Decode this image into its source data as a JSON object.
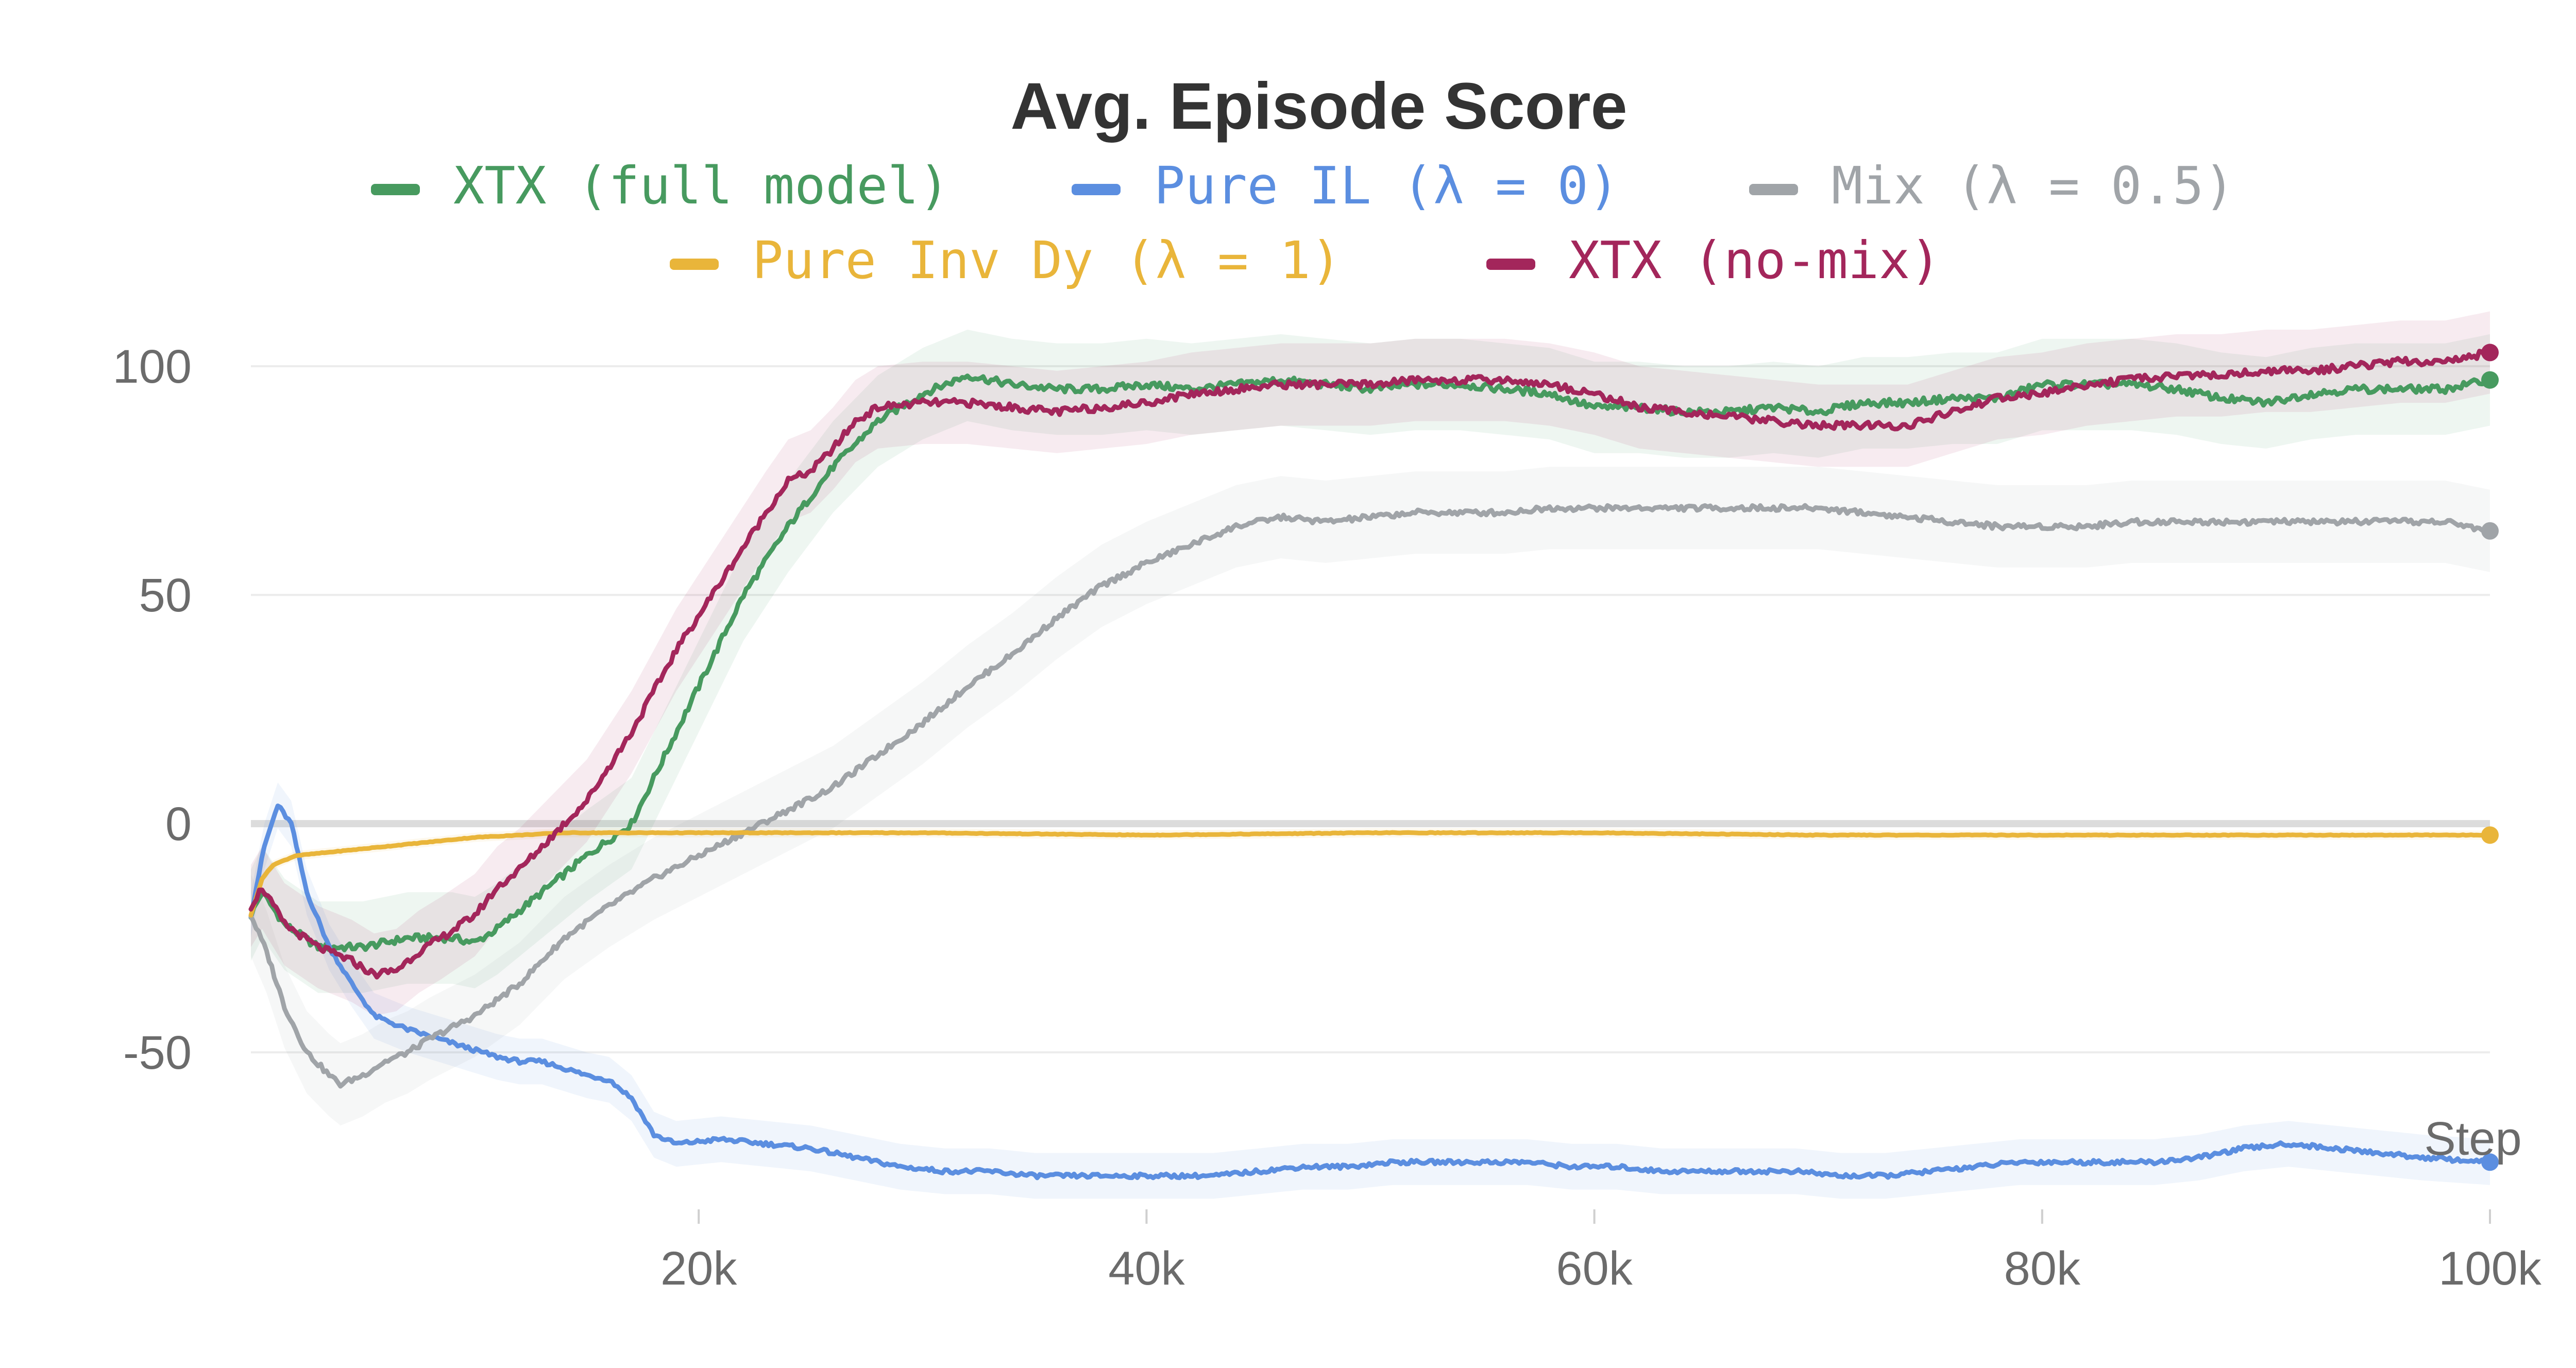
{
  "chart_data": {
    "type": "line",
    "title": "Avg. Episode Score",
    "xlabel": "Step",
    "ylabel": "",
    "xlim": [
      0,
      100000
    ],
    "ylim": [
      -85,
      108
    ],
    "y_ticks": [
      {
        "value": 100,
        "label": "100"
      },
      {
        "value": 50,
        "label": "50"
      },
      {
        "value": 0,
        "label": "0"
      },
      {
        "value": -50,
        "label": "-50"
      }
    ],
    "x_ticks": [
      {
        "value": 20000,
        "label": "20k"
      },
      {
        "value": 40000,
        "label": "40k"
      },
      {
        "value": 60000,
        "label": "60k"
      },
      {
        "value": 80000,
        "label": "80k"
      },
      {
        "value": 100000,
        "label": "100k"
      }
    ],
    "grid": true,
    "legend_position": "top",
    "series": [
      {
        "name": "XTX (full model)",
        "color": "#479a5f",
        "band": 10,
        "points": [
          [
            0,
            -20
          ],
          [
            500,
            -15
          ],
          [
            1500,
            -22
          ],
          [
            3000,
            -27
          ],
          [
            5000,
            -27
          ],
          [
            7000,
            -25
          ],
          [
            9000,
            -25
          ],
          [
            10000,
            -26
          ],
          [
            11000,
            -23
          ],
          [
            13000,
            -15
          ],
          [
            15000,
            -7
          ],
          [
            17000,
            0
          ],
          [
            18000,
            10
          ],
          [
            20000,
            30
          ],
          [
            22000,
            50
          ],
          [
            24000,
            65
          ],
          [
            26000,
            78
          ],
          [
            28000,
            88
          ],
          [
            30000,
            94
          ],
          [
            32000,
            98
          ],
          [
            34000,
            96
          ],
          [
            36000,
            95
          ],
          [
            38000,
            95
          ],
          [
            40000,
            96
          ],
          [
            42000,
            95
          ],
          [
            44000,
            96
          ],
          [
            46000,
            97
          ],
          [
            48000,
            96
          ],
          [
            50000,
            95
          ],
          [
            52000,
            96
          ],
          [
            54000,
            96
          ],
          [
            56000,
            95
          ],
          [
            58000,
            94
          ],
          [
            60000,
            91
          ],
          [
            62000,
            91
          ],
          [
            64000,
            90
          ],
          [
            66000,
            90
          ],
          [
            68000,
            91
          ],
          [
            70000,
            90
          ],
          [
            72000,
            92
          ],
          [
            74000,
            92
          ],
          [
            76000,
            93
          ],
          [
            78000,
            93
          ],
          [
            80000,
            96
          ],
          [
            82000,
            96
          ],
          [
            84000,
            96
          ],
          [
            86000,
            95
          ],
          [
            88000,
            93
          ],
          [
            90000,
            92
          ],
          [
            92000,
            94
          ],
          [
            94000,
            95
          ],
          [
            96000,
            95
          ],
          [
            98000,
            95
          ],
          [
            100000,
            97
          ]
        ]
      },
      {
        "name": "Pure IL (λ = 0)",
        "color": "#5b8ee0",
        "band": 5,
        "points": [
          [
            0,
            -20
          ],
          [
            600,
            -5
          ],
          [
            1200,
            4
          ],
          [
            1800,
            0
          ],
          [
            2500,
            -15
          ],
          [
            3500,
            -27
          ],
          [
            4500,
            -35
          ],
          [
            5500,
            -42
          ],
          [
            7000,
            -45
          ],
          [
            9000,
            -48
          ],
          [
            11000,
            -51
          ],
          [
            12000,
            -52
          ],
          [
            13000,
            -52
          ],
          [
            15000,
            -55
          ],
          [
            16000,
            -56
          ],
          [
            17000,
            -60
          ],
          [
            18000,
            -68
          ],
          [
            19000,
            -70
          ],
          [
            21000,
            -69
          ],
          [
            23000,
            -70
          ],
          [
            25000,
            -71
          ],
          [
            27000,
            -73
          ],
          [
            29000,
            -75
          ],
          [
            31000,
            -76
          ],
          [
            33000,
            -76
          ],
          [
            35000,
            -77
          ],
          [
            37000,
            -77
          ],
          [
            39000,
            -77
          ],
          [
            41000,
            -77
          ],
          [
            43000,
            -77
          ],
          [
            45000,
            -76
          ],
          [
            47000,
            -75
          ],
          [
            49000,
            -75
          ],
          [
            51000,
            -74
          ],
          [
            53000,
            -74
          ],
          [
            55000,
            -74
          ],
          [
            57000,
            -74
          ],
          [
            59000,
            -75
          ],
          [
            61000,
            -75
          ],
          [
            63000,
            -76
          ],
          [
            65000,
            -76
          ],
          [
            67000,
            -76
          ],
          [
            69000,
            -76
          ],
          [
            71000,
            -77
          ],
          [
            73000,
            -77
          ],
          [
            75000,
            -76
          ],
          [
            77000,
            -75
          ],
          [
            79000,
            -74
          ],
          [
            81000,
            -74
          ],
          [
            83000,
            -74
          ],
          [
            85000,
            -74
          ],
          [
            87000,
            -73
          ],
          [
            89000,
            -71
          ],
          [
            91000,
            -70
          ],
          [
            93000,
            -71
          ],
          [
            95000,
            -72
          ],
          [
            97000,
            -73
          ],
          [
            100000,
            -74
          ]
        ]
      },
      {
        "name": "Mix (λ = 0.5)",
        "color": "#a0a4a8",
        "band": 9,
        "points": [
          [
            0,
            -20
          ],
          [
            700,
            -28
          ],
          [
            1500,
            -40
          ],
          [
            2500,
            -50
          ],
          [
            3500,
            -55
          ],
          [
            4000,
            -57
          ],
          [
            5000,
            -55
          ],
          [
            6000,
            -52
          ],
          [
            7000,
            -50
          ],
          [
            8000,
            -47
          ],
          [
            10000,
            -42
          ],
          [
            12000,
            -35
          ],
          [
            14000,
            -25
          ],
          [
            16000,
            -18
          ],
          [
            18000,
            -12
          ],
          [
            20000,
            -7
          ],
          [
            22000,
            -2
          ],
          [
            24000,
            3
          ],
          [
            26000,
            8
          ],
          [
            28000,
            15
          ],
          [
            30000,
            22
          ],
          [
            32000,
            30
          ],
          [
            34000,
            37
          ],
          [
            36000,
            45
          ],
          [
            38000,
            52
          ],
          [
            40000,
            57
          ],
          [
            42000,
            61
          ],
          [
            44000,
            65
          ],
          [
            46000,
            67
          ],
          [
            48000,
            66
          ],
          [
            50000,
            67
          ],
          [
            52000,
            68
          ],
          [
            54000,
            68
          ],
          [
            56000,
            68
          ],
          [
            58000,
            69
          ],
          [
            60000,
            69
          ],
          [
            62000,
            69
          ],
          [
            64000,
            69
          ],
          [
            66000,
            69
          ],
          [
            68000,
            69
          ],
          [
            70000,
            69
          ],
          [
            72000,
            68
          ],
          [
            74000,
            67
          ],
          [
            76000,
            66
          ],
          [
            78000,
            65
          ],
          [
            80000,
            65
          ],
          [
            82000,
            65
          ],
          [
            84000,
            66
          ],
          [
            86000,
            66
          ],
          [
            88000,
            66
          ],
          [
            90000,
            66
          ],
          [
            92000,
            66
          ],
          [
            94000,
            66
          ],
          [
            96000,
            66
          ],
          [
            98000,
            66
          ],
          [
            100000,
            64
          ]
        ]
      },
      {
        "name": "Pure Inv Dy (λ = 1)",
        "color": "#e9b53a",
        "band": 1,
        "points": [
          [
            0,
            -20
          ],
          [
            500,
            -12
          ],
          [
            1000,
            -9
          ],
          [
            2000,
            -7
          ],
          [
            4000,
            -6
          ],
          [
            6000,
            -5
          ],
          [
            8000,
            -4
          ],
          [
            10000,
            -3
          ],
          [
            12000,
            -2.5
          ],
          [
            14000,
            -2
          ],
          [
            16000,
            -2
          ],
          [
            20000,
            -2
          ],
          [
            30000,
            -2
          ],
          [
            40000,
            -2.5
          ],
          [
            50000,
            -2
          ],
          [
            60000,
            -2
          ],
          [
            70000,
            -2.5
          ],
          [
            80000,
            -2.5
          ],
          [
            90000,
            -2.5
          ],
          [
            100000,
            -2.5
          ]
        ]
      },
      {
        "name": "XTX (no-mix)",
        "color": "#a3265b",
        "band": 9,
        "points": [
          [
            0,
            -18
          ],
          [
            500,
            -14
          ],
          [
            1500,
            -22
          ],
          [
            3000,
            -27
          ],
          [
            4500,
            -30
          ],
          [
            5500,
            -33
          ],
          [
            6500,
            -32
          ],
          [
            7500,
            -28
          ],
          [
            8500,
            -25
          ],
          [
            10000,
            -20
          ],
          [
            11000,
            -14
          ],
          [
            12000,
            -10
          ],
          [
            13000,
            -5
          ],
          [
            15000,
            5
          ],
          [
            17000,
            20
          ],
          [
            19000,
            38
          ],
          [
            21000,
            53
          ],
          [
            23000,
            68
          ],
          [
            24000,
            75
          ],
          [
            25000,
            77
          ],
          [
            26000,
            82
          ],
          [
            27000,
            88
          ],
          [
            28000,
            91
          ],
          [
            30000,
            92
          ],
          [
            32000,
            92
          ],
          [
            34000,
            91
          ],
          [
            36000,
            90
          ],
          [
            38000,
            91
          ],
          [
            40000,
            92
          ],
          [
            42000,
            94
          ],
          [
            44000,
            95
          ],
          [
            46000,
            96
          ],
          [
            48000,
            96
          ],
          [
            50000,
            96
          ],
          [
            52000,
            97
          ],
          [
            54000,
            97
          ],
          [
            56000,
            97
          ],
          [
            58000,
            96
          ],
          [
            60000,
            94
          ],
          [
            62000,
            91
          ],
          [
            64000,
            90
          ],
          [
            66000,
            89
          ],
          [
            68000,
            88
          ],
          [
            70000,
            87
          ],
          [
            72000,
            87
          ],
          [
            74000,
            87
          ],
          [
            76000,
            90
          ],
          [
            78000,
            93
          ],
          [
            80000,
            94
          ],
          [
            82000,
            96
          ],
          [
            84000,
            97
          ],
          [
            86000,
            98
          ],
          [
            88000,
            98
          ],
          [
            90000,
            99
          ],
          [
            92000,
            99
          ],
          [
            94000,
            100
          ],
          [
            96000,
            101
          ],
          [
            98000,
            101
          ],
          [
            100000,
            103
          ]
        ]
      }
    ]
  }
}
